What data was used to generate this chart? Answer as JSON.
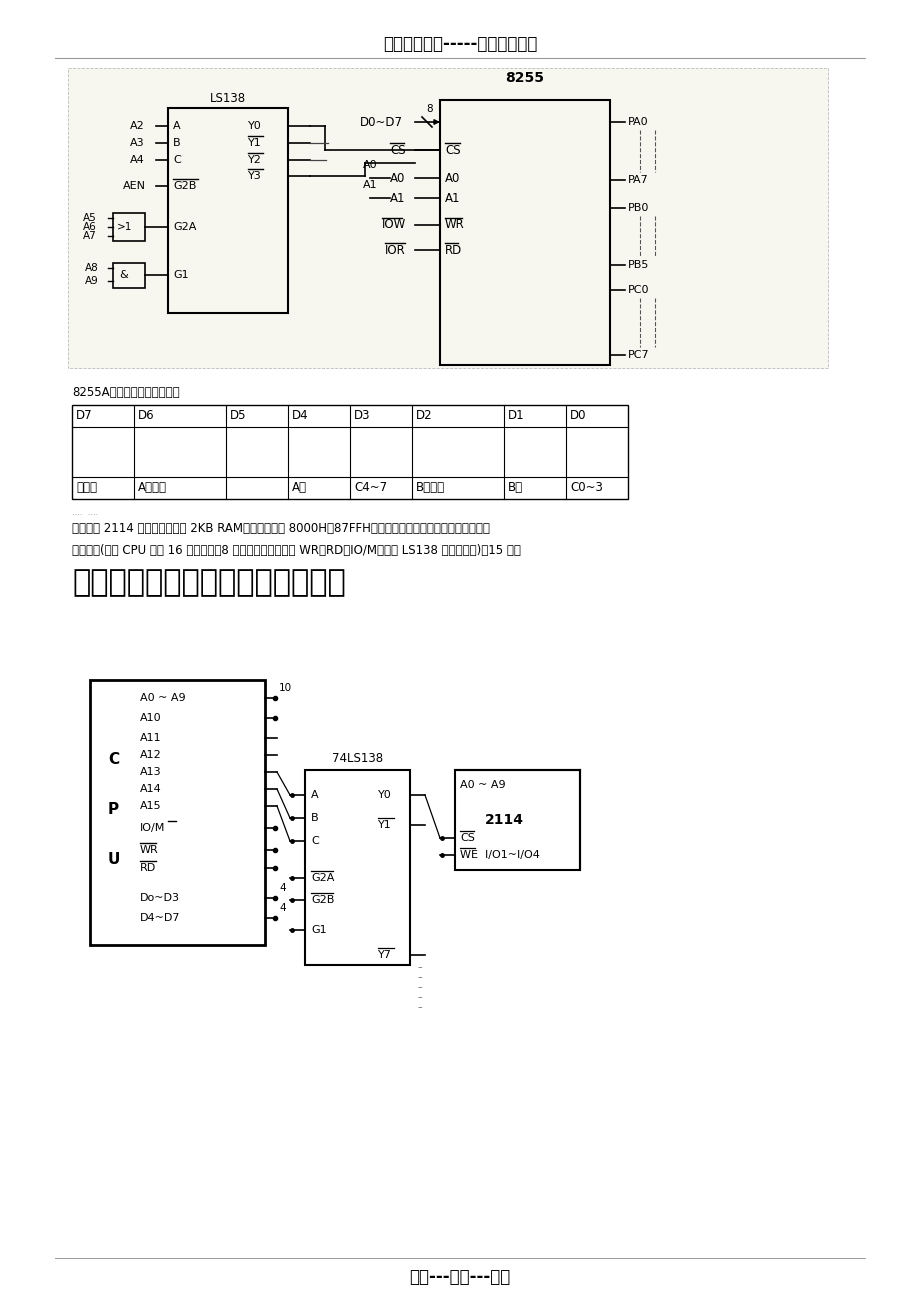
{
  "page_bg": "#ffffff",
  "header_text": "精选优质文档-----倾情为你奉上",
  "footer_text": "专心---专注---专业",
  "table_label": "8255A工作方式控制字如下：",
  "table_headers": [
    "D7",
    "D6",
    "D5",
    "D4",
    "D3",
    "D2",
    "D1",
    "D0"
  ],
  "table_footers": [
    "特征位",
    "A组方式",
    "",
    "A口",
    "C4~7",
    "B组方式",
    "B口",
    "C0~3"
  ],
  "note_text": "（注意：复试考过几次，很重要）",
  "para_text1": "五、若用 2114 存储器芯片组成 2KB RAM，地址范围为 8000H～87FFH，问地址线、数据线及相关的控制线如",
  "para_text2": "何连接？(假设 CPU 只有 16 根地址线、8 根数据线，控制线为 WR、RD、IO/M，采用 LS138 全译码法。)（15 分）",
  "border_color": "#000000",
  "text_color": "#000000",
  "line_color": "#000000"
}
